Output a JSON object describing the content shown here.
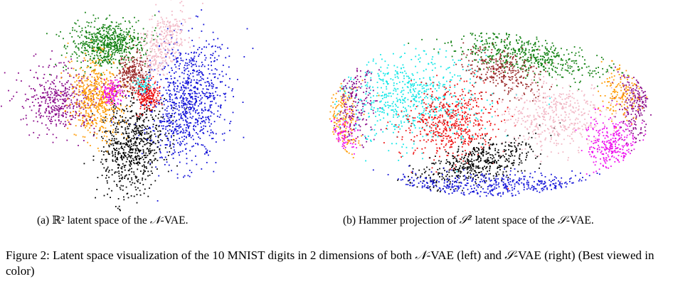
{
  "figure": {
    "subfig_a": {
      "tag": "(a)",
      "space_symbol": "ℝ²",
      "text_mid": "latent space of the",
      "model": "𝒩",
      "text_end": "-VAE."
    },
    "subfig_b": {
      "tag": "(b)",
      "text_start": "Hammer projection of",
      "space_symbol": "𝒮²",
      "text_mid": "latent space of the",
      "model": "𝒮",
      "text_end": "-VAE."
    },
    "caption": {
      "label": "Figure 2:",
      "text": "Latent space visualization of the 10 MNIST digits in 2 dimensions of both",
      "model_n": "𝒩",
      "mid": "-VAE (left) and",
      "model_s": "𝒮",
      "end": "-VAE (right) (Best viewed in color)"
    }
  },
  "digit_colors": {
    "green": "#118011",
    "pink": "#f2b8c6",
    "blue": "#1010d8",
    "purple": "#8a0a8a",
    "orange": "#ff9a00",
    "magenta": "#ee10ee",
    "brown": "#9a2a2a",
    "red": "#ee1111",
    "cyan": "#11e6e6",
    "black": "#000000"
  }
}
